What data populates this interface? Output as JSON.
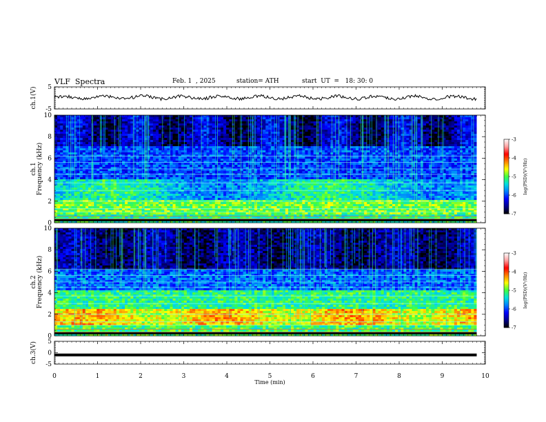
{
  "header": {
    "title": "VLF  Spectra",
    "date": "Feb. 1  , 2025",
    "station": "station= ATH",
    "start_ut": "start  UT  =   18: 30: 0"
  },
  "chart_data": [
    {
      "type": "line",
      "name": "ch1-waveform",
      "ylabel": "ch.1(V)",
      "ylim": [
        -5,
        5
      ],
      "yticks": [
        "5",
        "-5"
      ],
      "description_level": 0.2,
      "x_range_min": [
        0,
        9.8
      ]
    },
    {
      "type": "heatmap",
      "name": "ch1-spectrogram",
      "ylabel_top": "ch.1",
      "ylabel": "Frequency  (kHz)",
      "ylim": [
        0,
        10
      ],
      "yticks": [
        "0",
        "2",
        "4",
        "6",
        "8",
        "10"
      ],
      "x_range_min": [
        0,
        9.8
      ],
      "colorbar": {
        "label": "log(PSD)(V²/Hz)",
        "range": [
          -7,
          -3
        ],
        "ticks": [
          "-3",
          "-4",
          "-5",
          "-6",
          "-7"
        ]
      }
    },
    {
      "type": "heatmap",
      "name": "ch2-spectrogram",
      "ylabel_top": "ch.2",
      "ylabel": "Frequency  (kHz)",
      "ylim": [
        0,
        10
      ],
      "yticks": [
        "0",
        "2",
        "4",
        "6",
        "8",
        "10"
      ],
      "x_range_min": [
        0,
        9.8
      ],
      "colorbar": {
        "label": "log(PSD)(V²/Hz)",
        "range": [
          -7,
          -3
        ],
        "ticks": [
          "-3",
          "-4",
          "-5",
          "-6",
          "-7"
        ]
      }
    },
    {
      "type": "line",
      "name": "ch3-waveform",
      "ylabel": "ch.3(V)",
      "ylim": [
        -5,
        5
      ],
      "yticks": [
        "5",
        "0",
        "-5"
      ],
      "level": -1,
      "x_range_min": [
        0,
        9.8
      ]
    }
  ],
  "x_axis": {
    "label": "Time  (min)",
    "ticks": [
      "0",
      "1",
      "2",
      "3",
      "4",
      "5",
      "6",
      "7",
      "8",
      "9",
      "10"
    ],
    "range": [
      0,
      10
    ]
  },
  "colormap": [
    "#000000",
    "#00008c",
    "#0000ff",
    "#0080ff",
    "#00e0e0",
    "#40ff40",
    "#ffff00",
    "#ff8000",
    "#ff0000",
    "#ffa0a0",
    "#ffffff"
  ]
}
